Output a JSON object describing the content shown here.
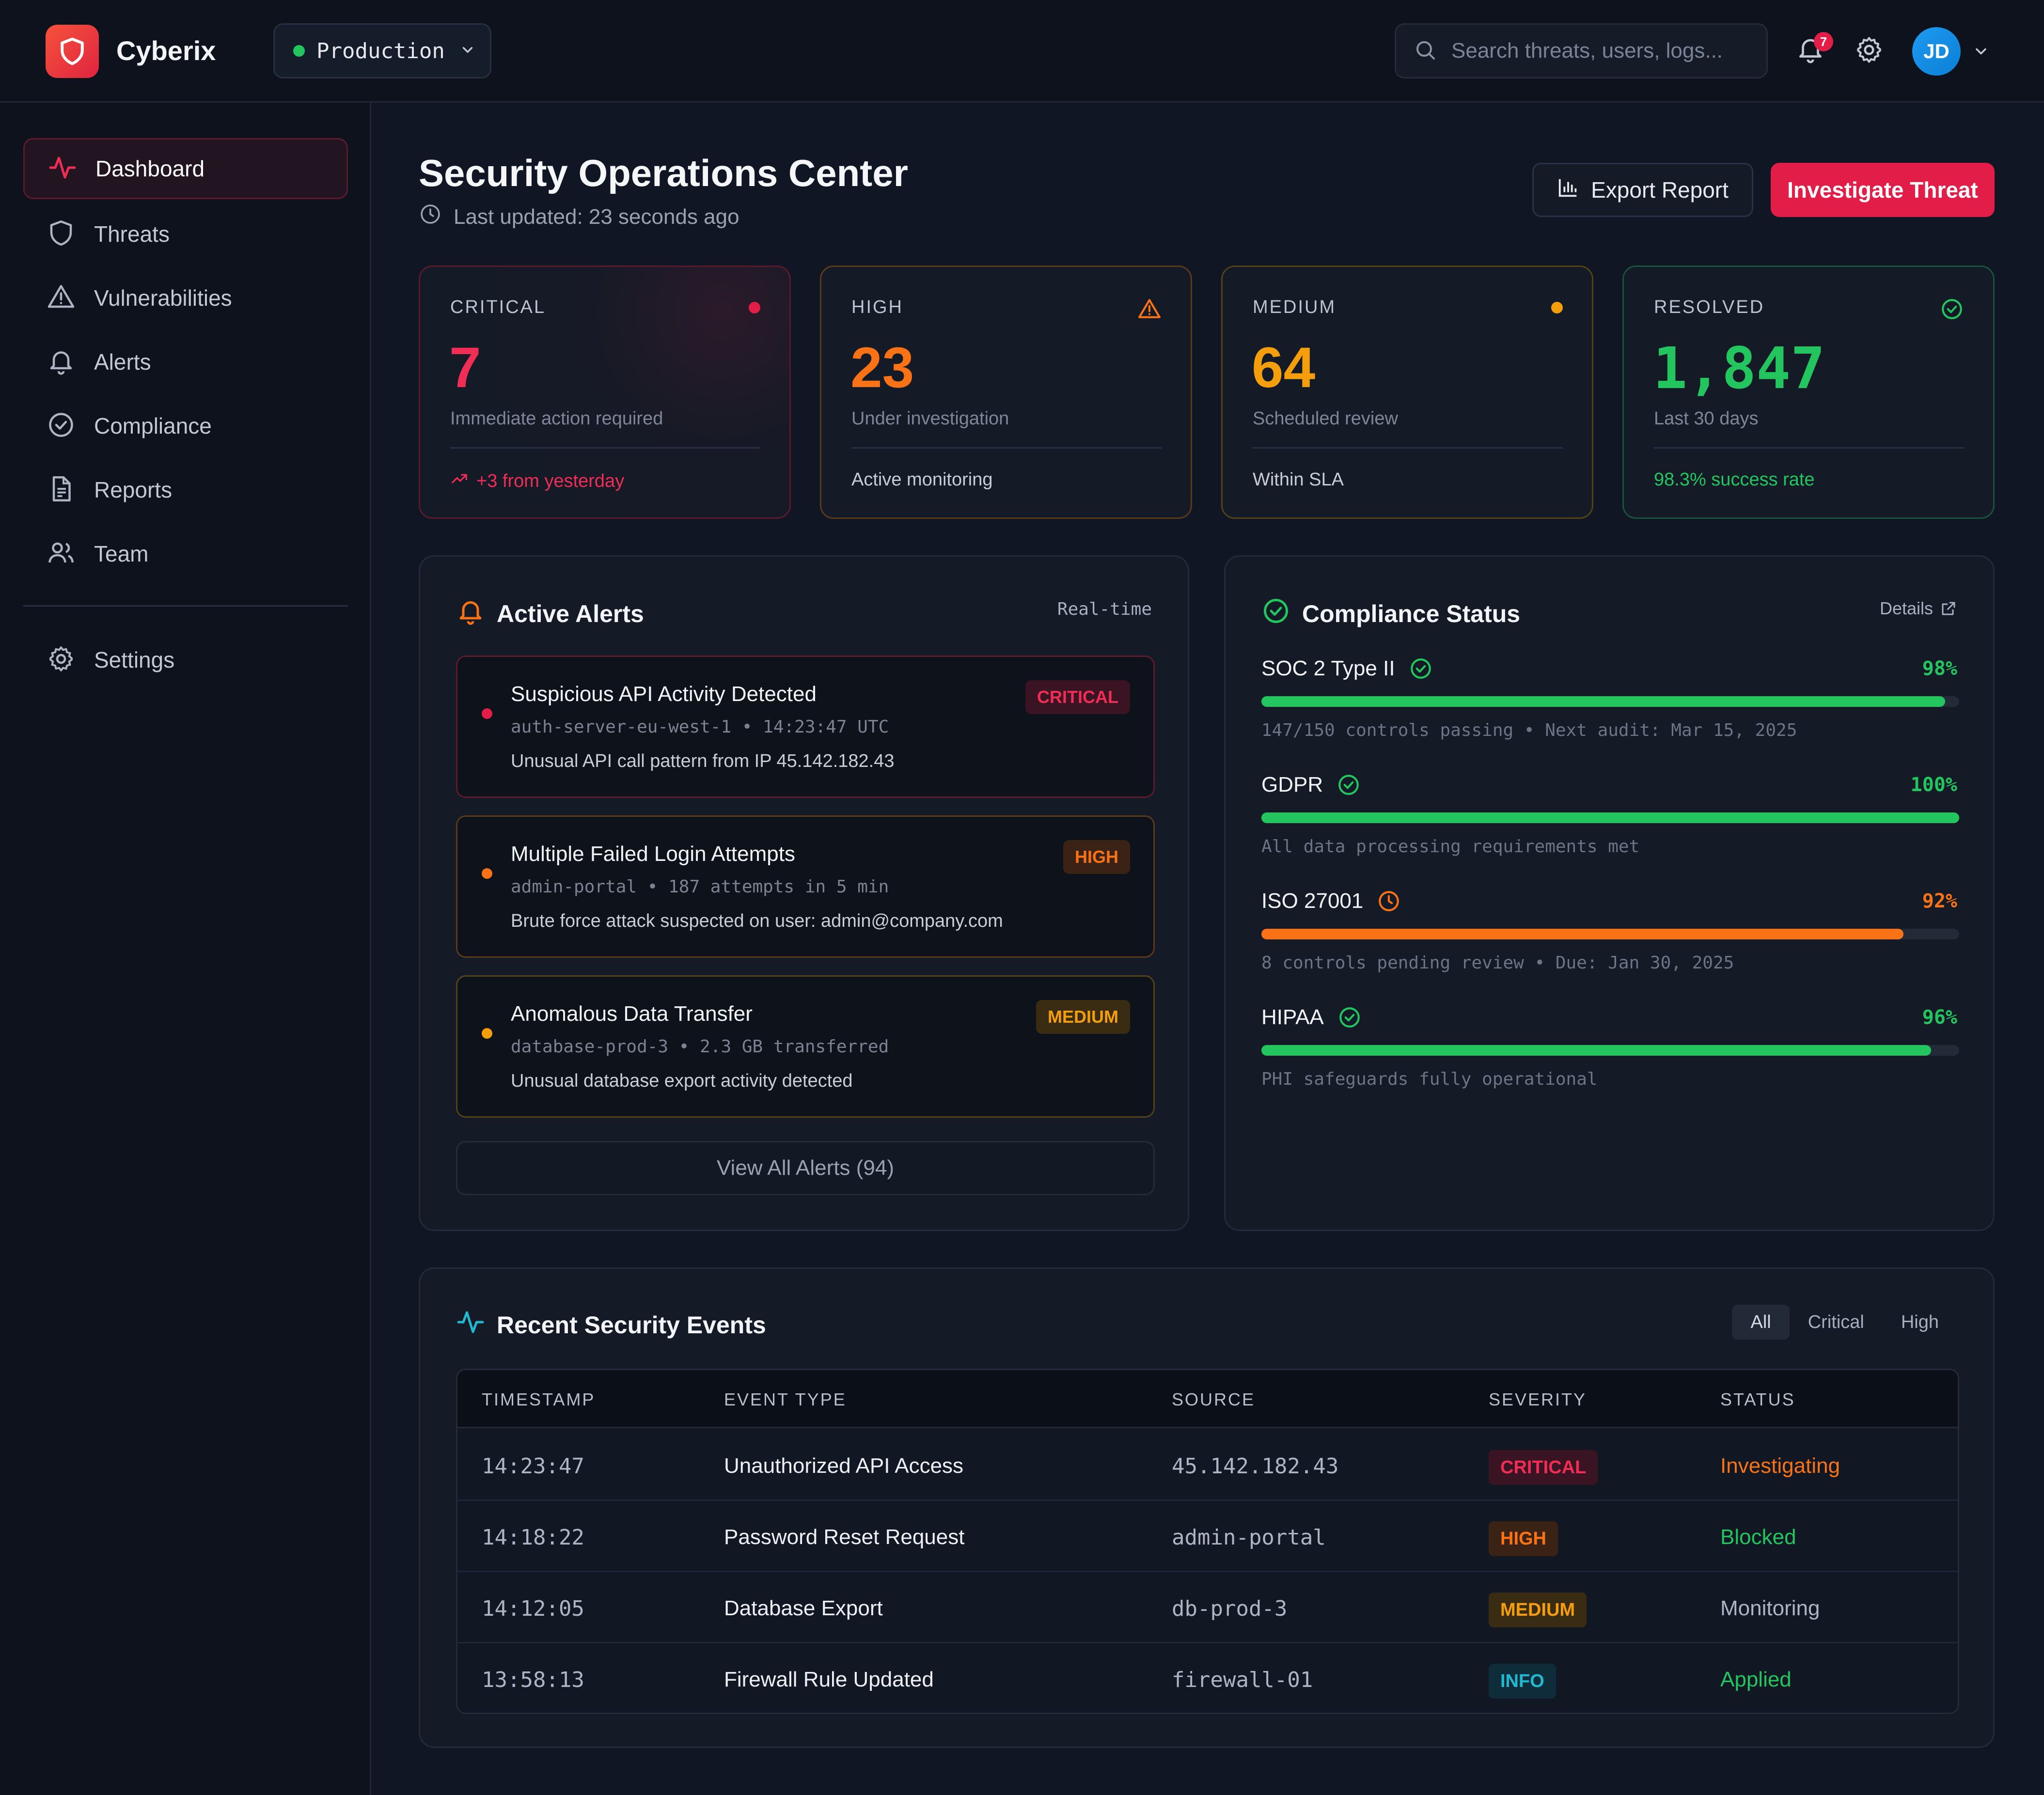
{
  "topbar": {
    "brand": "Cyberix",
    "environment": "Production",
    "search_placeholder": "Search threats, users, logs...",
    "notification_count": "7",
    "avatar_initials": "JD"
  },
  "sidebar": {
    "items": [
      {
        "label": "Dashboard",
        "icon": "activity-icon",
        "active": true
      },
      {
        "label": "Threats",
        "icon": "shield-icon"
      },
      {
        "label": "Vulnerabilities",
        "icon": "warning-triangle-icon"
      },
      {
        "label": "Alerts",
        "icon": "bell-icon"
      },
      {
        "label": "Compliance",
        "icon": "check-circle-icon"
      },
      {
        "label": "Reports",
        "icon": "file-text-icon"
      },
      {
        "label": "Team",
        "icon": "users-icon"
      }
    ],
    "settings_label": "Settings"
  },
  "header": {
    "title": "Security Operations Center",
    "updated": "Last updated: 23 seconds ago",
    "export_label": "Export Report",
    "investigate_label": "Investigate Threat"
  },
  "stats": [
    {
      "label": "CRITICAL",
      "value": "7",
      "sub": "Immediate action required",
      "foot": "+3 from yesterday",
      "color": "#ef2d55"
    },
    {
      "label": "HIGH",
      "value": "23",
      "sub": "Under investigation",
      "foot": "Active monitoring",
      "color": "#f97316"
    },
    {
      "label": "MEDIUM",
      "value": "64",
      "sub": "Scheduled review",
      "foot": "Within SLA",
      "color": "#f59e0b"
    },
    {
      "label": "RESOLVED",
      "value": "1,847",
      "sub": "Last 30 days",
      "foot": "98.3% success rate",
      "color": "#22c55e"
    }
  ],
  "alerts": {
    "title": "Active Alerts",
    "mode": "Real-time",
    "items": [
      {
        "title": "Suspicious API Activity Detected",
        "meta": "auth-server-eu-west-1 • 14:23:47 UTC",
        "desc": "Unusual API call pattern from IP 45.142.182.43",
        "severity": "CRITICAL"
      },
      {
        "title": "Multiple Failed Login Attempts",
        "meta": "admin-portal • 187 attempts in 5 min",
        "desc": "Brute force attack suspected on user: admin@company.com",
        "severity": "HIGH"
      },
      {
        "title": "Anomalous Data Transfer",
        "meta": "database-prod-3 • 2.3 GB transferred",
        "desc": "Unusual database export activity detected",
        "severity": "MEDIUM"
      }
    ],
    "view_all": "View All Alerts (94)"
  },
  "compliance": {
    "title": "Compliance Status",
    "details_label": "Details",
    "items": [
      {
        "name": "SOC 2 Type II",
        "pct": "98%",
        "level": 0.98,
        "note": "147/150 controls passing • Next audit: Mar 15, 2025",
        "color": "#22c55e",
        "icon": "check-circle-icon"
      },
      {
        "name": "GDPR",
        "pct": "100%",
        "level": 1.0,
        "note": "All data processing requirements met",
        "color": "#22c55e",
        "icon": "check-circle-icon"
      },
      {
        "name": "ISO 27001",
        "pct": "92%",
        "level": 0.92,
        "note": "8 controls pending review • Due: Jan 30, 2025",
        "color": "#f97316",
        "icon": "clock-icon"
      },
      {
        "name": "HIPAA",
        "pct": "96%",
        "level": 0.96,
        "note": "PHI safeguards fully operational",
        "color": "#22c55e",
        "icon": "check-circle-icon"
      }
    ]
  },
  "events": {
    "title": "Recent Security Events",
    "filters": [
      "All",
      "Critical",
      "High"
    ],
    "columns": [
      "TIMESTAMP",
      "EVENT TYPE",
      "SOURCE",
      "SEVERITY",
      "STATUS"
    ],
    "rows": [
      {
        "time": "14:23:47",
        "type": "Unauthorized API Access",
        "source": "45.142.182.43",
        "severity": "CRITICAL",
        "status": "Investigating"
      },
      {
        "time": "14:18:22",
        "type": "Password Reset Request",
        "source": "admin-portal",
        "severity": "HIGH",
        "status": "Blocked"
      },
      {
        "time": "14:12:05",
        "type": "Database Export",
        "source": "db-prod-3",
        "severity": "MEDIUM",
        "status": "Monitoring"
      },
      {
        "time": "13:58:13",
        "type": "Firewall Rule Updated",
        "source": "firewall-01",
        "severity": "INFO",
        "status": "Applied"
      }
    ]
  }
}
